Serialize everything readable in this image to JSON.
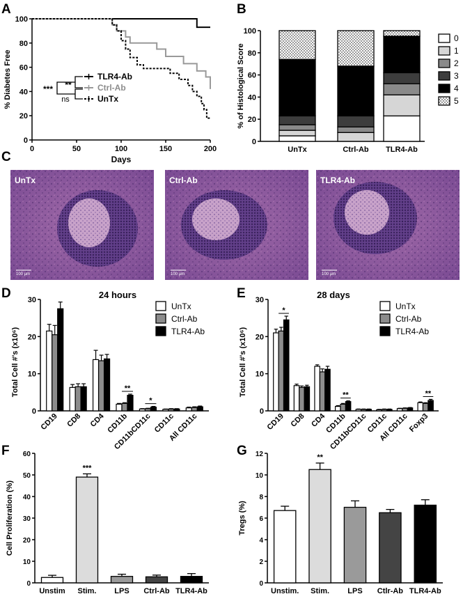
{
  "chart_data": [
    {
      "panel": "A",
      "type": "line",
      "xlabel": "Days",
      "ylabel": "% Diabetes Free",
      "xlim": [
        0,
        200
      ],
      "ylim": [
        0,
        100
      ],
      "xticks": [
        0,
        50,
        100,
        150,
        200
      ],
      "yticks": [
        0,
        20,
        40,
        60,
        80,
        100
      ],
      "series": [
        {
          "name": "TLR4-Ab",
          "color": "#000000",
          "dash": "",
          "points": [
            [
              0,
              100
            ],
            [
              185,
              100
            ],
            [
              185,
              93
            ],
            [
              200,
              93
            ]
          ]
        },
        {
          "name": "Ctrl-Ab",
          "color": "#999999",
          "dash": "",
          "points": [
            [
              0,
              100
            ],
            [
              90,
              100
            ],
            [
              90,
              95
            ],
            [
              95,
              95
            ],
            [
              95,
              90
            ],
            [
              105,
              90
            ],
            [
              105,
              85
            ],
            [
              110,
              85
            ],
            [
              110,
              80
            ],
            [
              140,
              80
            ],
            [
              140,
              75
            ],
            [
              150,
              75
            ],
            [
              150,
              69
            ],
            [
              170,
              69
            ],
            [
              170,
              63
            ],
            [
              185,
              63
            ],
            [
              185,
              57
            ],
            [
              195,
              57
            ],
            [
              195,
              52
            ],
            [
              200,
              52
            ],
            [
              200,
              42
            ]
          ]
        },
        {
          "name": "UnTx",
          "color": "#000000",
          "dash": "3,2",
          "points": [
            [
              0,
              100
            ],
            [
              90,
              100
            ],
            [
              90,
              95
            ],
            [
              95,
              95
            ],
            [
              95,
              90
            ],
            [
              100,
              90
            ],
            [
              100,
              82
            ],
            [
              105,
              82
            ],
            [
              105,
              75
            ],
            [
              110,
              75
            ],
            [
              110,
              68
            ],
            [
              118,
              68
            ],
            [
              118,
              62
            ],
            [
              125,
              62
            ],
            [
              125,
              59
            ],
            [
              155,
              59
            ],
            [
              155,
              55
            ],
            [
              165,
              55
            ],
            [
              165,
              50
            ],
            [
              175,
              50
            ],
            [
              175,
              45
            ],
            [
              180,
              45
            ],
            [
              180,
              40
            ],
            [
              185,
              40
            ],
            [
              185,
              36
            ],
            [
              190,
              36
            ],
            [
              190,
              30
            ],
            [
              193,
              30
            ],
            [
              193,
              25
            ],
            [
              196,
              25
            ],
            [
              196,
              18
            ],
            [
              200,
              18
            ]
          ]
        }
      ],
      "annotations": [
        "***",
        "**",
        "ns"
      ]
    },
    {
      "panel": "B",
      "type": "bar",
      "stacked": true,
      "ylabel": "% of Histological Score",
      "categories": [
        "UnTx",
        "Ctrl-Ab",
        "TLR4-Ab"
      ],
      "ylim": [
        0,
        100
      ],
      "yticks": [
        0,
        20,
        40,
        60,
        80,
        100
      ],
      "series": [
        {
          "name": "0",
          "color": "#ffffff",
          "values": [
            5,
            0,
            23
          ]
        },
        {
          "name": "1",
          "color": "#d6d6d6",
          "values": [
            5,
            8,
            19
          ]
        },
        {
          "name": "2",
          "color": "#8a8a8a",
          "values": [
            5,
            5,
            10
          ]
        },
        {
          "name": "3",
          "color": "#3d3d3d",
          "values": [
            8,
            10,
            10
          ]
        },
        {
          "name": "4",
          "color": "#000000",
          "values": [
            51,
            45,
            33
          ]
        },
        {
          "name": "5",
          "color": "dots",
          "values": [
            26,
            32,
            5
          ]
        }
      ]
    },
    {
      "panel": "D",
      "type": "bar",
      "title": "24 hours",
      "ylabel": "Total Cell #'s (x10⁶)",
      "ylim": [
        0,
        30
      ],
      "yticks": [
        0,
        10,
        20,
        30
      ],
      "categories": [
        "CD19",
        "CD8",
        "CD4",
        "CD11b",
        "CD11bCD11c",
        "CD11c",
        "All CD11c"
      ],
      "series": [
        {
          "name": "UnTx",
          "color": "#ffffff",
          "values": [
            21.5,
            6.3,
            13.8,
            1.8,
            0.5,
            0.4,
            0.8
          ],
          "errors": [
            1.8,
            0.8,
            2.5,
            0.2,
            0.1,
            0.1,
            0.2
          ]
        },
        {
          "name": "Ctrl-Ab",
          "color": "#8c8c8c",
          "values": [
            20.5,
            6.5,
            13.5,
            2.0,
            0.6,
            0.5,
            0.9
          ],
          "errors": [
            2.5,
            0.8,
            1.5,
            0.2,
            0.1,
            0.1,
            0.2
          ]
        },
        {
          "name": "TLR4-Ab",
          "color": "#000000",
          "values": [
            27.5,
            6.5,
            14.0,
            4.2,
            1.0,
            0.5,
            1.1
          ],
          "errors": [
            1.8,
            0.8,
            1.2,
            0.3,
            0.2,
            0.1,
            0.2
          ]
        }
      ],
      "annotations": [
        {
          "category": "CD11b",
          "text": "**"
        },
        {
          "category": "CD11bCD11c",
          "text": "*"
        }
      ]
    },
    {
      "panel": "E",
      "type": "bar",
      "title": "28 days",
      "ylabel": "Total Cell #'s (x10⁶)",
      "ylim": [
        0,
        30
      ],
      "yticks": [
        0,
        10,
        20,
        30
      ],
      "categories": [
        "CD19",
        "CD8",
        "CD4",
        "CD11b",
        "CD11bCD11c",
        "CD11c",
        "All CD11c",
        "Foxp3"
      ],
      "series": [
        {
          "name": "UnTx",
          "color": "#ffffff",
          "values": [
            21.0,
            6.8,
            12.0,
            1.2,
            0.4,
            0.3,
            0.6,
            2.2
          ],
          "errors": [
            1.0,
            0.4,
            0.4,
            0.2,
            0.1,
            0.1,
            0.1,
            0.2
          ]
        },
        {
          "name": "Ctrl-Ab",
          "color": "#8c8c8c",
          "values": [
            21.5,
            6.3,
            10.5,
            1.8,
            0.4,
            0.4,
            0.7,
            2.0
          ],
          "errors": [
            1.0,
            0.4,
            0.8,
            0.2,
            0.1,
            0.1,
            0.1,
            0.2
          ]
        },
        {
          "name": "TLR4-Ab",
          "color": "#000000",
          "values": [
            24.5,
            6.5,
            11.2,
            2.5,
            0.4,
            0.4,
            0.8,
            2.8
          ],
          "errors": [
            1.0,
            0.4,
            0.8,
            0.2,
            0.1,
            0.1,
            0.1,
            0.3
          ]
        }
      ],
      "annotations": [
        {
          "category": "CD19",
          "text": "*"
        },
        {
          "category": "CD11b",
          "text": "**"
        },
        {
          "category": "Foxp3",
          "text": "**"
        }
      ]
    },
    {
      "panel": "F",
      "type": "bar",
      "ylabel": "Cell Proliferation (%)",
      "ylim": [
        0,
        60
      ],
      "yticks": [
        0,
        10,
        20,
        30,
        40,
        50,
        60
      ],
      "categories": [
        "Unstim",
        "Stim.",
        "LPS",
        "Ctrl-Ab",
        "TLR4-Ab"
      ],
      "colors": [
        "#ffffff",
        "#dcdcdc",
        "#9a9a9a",
        "#444444",
        "#000000"
      ],
      "values": [
        2.5,
        49.0,
        3.0,
        2.8,
        3.0
      ],
      "errors": [
        1.0,
        1.5,
        1.0,
        0.8,
        1.3
      ],
      "annotations": [
        {
          "category": "Stim.",
          "text": "***"
        }
      ]
    },
    {
      "panel": "G",
      "type": "bar",
      "ylabel": "Tregs (%)",
      "ylim": [
        0,
        12
      ],
      "yticks": [
        0,
        2,
        4,
        6,
        8,
        10,
        12
      ],
      "categories": [
        "Unstim.",
        "Stim.",
        "LPS",
        "Ctlr-Ab",
        "TLR4-Ab"
      ],
      "colors": [
        "#ffffff",
        "#dcdcdc",
        "#9a9a9a",
        "#444444",
        "#000000"
      ],
      "values": [
        6.7,
        10.5,
        7.0,
        6.5,
        7.2
      ],
      "errors": [
        0.4,
        0.6,
        0.6,
        0.3,
        0.5
      ],
      "annotations": [
        {
          "category": "Stim.",
          "text": "**"
        }
      ]
    }
  ],
  "panel_letters": [
    "A",
    "B",
    "C",
    "D",
    "E",
    "F",
    "G"
  ],
  "micrographs": [
    {
      "label": "UnTx",
      "scale": "100 µm"
    },
    {
      "label": "Ctrl-Ab",
      "scale": "100 µm"
    },
    {
      "label": "TLR4-Ab",
      "scale": "100 µm"
    }
  ]
}
